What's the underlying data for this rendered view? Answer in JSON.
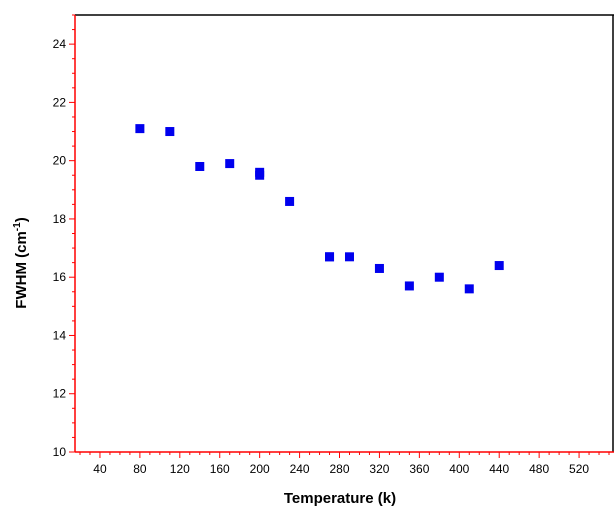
{
  "chart_data": {
    "type": "scatter",
    "title": "",
    "xlabel": "Temperature (k)",
    "ylabel_main": "FWHM (cm",
    "ylabel_sup": "-1",
    "ylabel_end": ")",
    "xlim": [
      15,
      555
    ],
    "ylim": [
      10,
      25
    ],
    "x_ticks": [
      40,
      80,
      120,
      160,
      200,
      240,
      280,
      320,
      360,
      400,
      440,
      480,
      520
    ],
    "y_ticks": [
      10,
      12,
      14,
      16,
      18,
      20,
      22,
      24
    ],
    "grid": false,
    "legend": "none",
    "colors": {
      "marker": "#0000ee",
      "axis": "#ff0000",
      "frame": "#000000"
    },
    "marker": "square",
    "series": [
      {
        "x": [
          80,
          110,
          140,
          170,
          200,
          200,
          230,
          270,
          270,
          290,
          320,
          350,
          380,
          410,
          440
        ],
        "y": [
          21.1,
          21.0,
          19.8,
          19.9,
          19.6,
          19.5,
          18.6,
          16.7,
          16.7,
          16.7,
          16.3,
          15.7,
          16.0,
          15.6,
          16.4
        ]
      }
    ]
  }
}
